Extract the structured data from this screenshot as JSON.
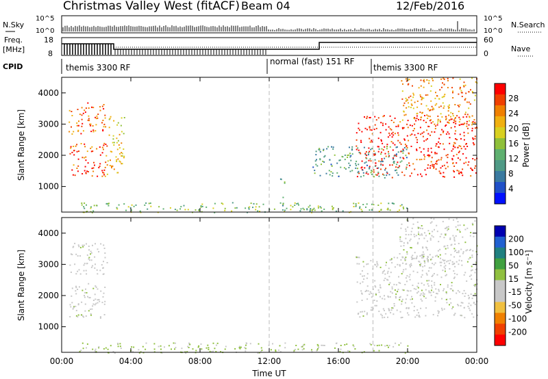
{
  "header": {
    "title": "Christmas Valley West (fitACF)",
    "beam": "Beam 04",
    "date": "12/Feb/2016"
  },
  "params": {
    "nsky_label": "N.Sky",
    "nsky_ticks": [
      "10^5",
      "10^0"
    ],
    "nsearch_label": "N.Search",
    "nsearch_ticks": [
      "10^5",
      "10^0"
    ],
    "freq_label": "Freq.",
    "freq_unit": "[MHz]",
    "freq_ticks": [
      "18",
      "8"
    ],
    "nave_label": "Nave",
    "nave_ticks": [
      "60",
      "0"
    ],
    "cpid_label": "CPID",
    "cpid_segments": [
      {
        "label": "themis 3300 RF",
        "start_hour": 0
      },
      {
        "label": "normal (fast) 151 RF",
        "start_hour": 12
      },
      {
        "label": "themis 3300 RF",
        "start_hour": 18
      }
    ]
  },
  "chart_data": [
    {
      "type": "heatmap",
      "title": "",
      "xlabel": "Time UT",
      "ylabel": "Slant Range [km]",
      "xlim_hours": [
        0,
        24
      ],
      "x_ticks": [
        "00:00",
        "04:00",
        "08:00",
        "12:00",
        "16:00",
        "20:00",
        "00:00"
      ],
      "ylim": [
        180,
        4500
      ],
      "y_ticks": [
        1000,
        2000,
        3000,
        4000
      ],
      "colorbar": {
        "label": "Power [dB]",
        "ticks": [
          4,
          8,
          12,
          16,
          20,
          24,
          28
        ],
        "range": [
          0,
          30
        ],
        "colors": [
          "#0010ff",
          "#2050c8",
          "#3a7aa0",
          "#4f9a86",
          "#5fb070",
          "#8fc03a",
          "#d8d020",
          "#f0b010",
          "#f08000",
          "#f04000",
          "#ff0000"
        ]
      },
      "segment_markers_hours": [
        12,
        18
      ],
      "regions": [
        {
          "name": "early-upper-arc",
          "t": [
            0.4,
            2.6
          ],
          "range": [
            2700,
            3700
          ],
          "value": 24
        },
        {
          "name": "early-lower-arc",
          "t": [
            0.4,
            2.6
          ],
          "range": [
            1300,
            2400
          ],
          "value": 26
        },
        {
          "name": "early-patch",
          "t": [
            2.6,
            3.6
          ],
          "range": [
            1400,
            3300
          ],
          "value": 20
        },
        {
          "name": "near-range-band",
          "t": [
            1,
            20
          ],
          "range": [
            180,
            500
          ],
          "value": 14
        },
        {
          "name": "midday-spike",
          "t": [
            12.6,
            12.9
          ],
          "range": [
            400,
            1300
          ],
          "value": 10
        },
        {
          "name": "evening-main-band",
          "t": [
            17,
            24
          ],
          "range": [
            1300,
            3300
          ],
          "value": 28
        },
        {
          "name": "evening-upper-band",
          "t": [
            19.5,
            24
          ],
          "range": [
            3000,
            4500
          ],
          "value": 22
        },
        {
          "name": "evening-lower-trail",
          "t": [
            14.5,
            20
          ],
          "range": [
            1300,
            2300
          ],
          "value": 10
        }
      ]
    },
    {
      "type": "heatmap",
      "title": "",
      "xlabel": "Time UT",
      "ylabel": "Slant Range [km]",
      "xlim_hours": [
        0,
        24
      ],
      "x_ticks": [
        "00:00",
        "04:00",
        "08:00",
        "12:00",
        "16:00",
        "20:00",
        "00:00"
      ],
      "ylim": [
        180,
        4500
      ],
      "y_ticks": [
        1000,
        2000,
        3000,
        4000
      ],
      "colorbar": {
        "label": "Velocity [m s⁻¹]",
        "ticks": [
          200,
          100,
          50,
          15,
          -15,
          -50,
          -100,
          -200
        ],
        "range": [
          -250,
          250
        ],
        "colors": [
          "#0000b0",
          "#2060d0",
          "#208080",
          "#40a040",
          "#90c040",
          "#c8c8c8",
          "#c8c8c8",
          "#f0c040",
          "#f08000",
          "#f04000",
          "#ff0000"
        ]
      },
      "segment_markers_hours": [
        12,
        18
      ],
      "regions": [
        {
          "name": "early-upper-arc",
          "t": [
            0.4,
            2.6
          ],
          "range": [
            2700,
            3700
          ],
          "value": 0
        },
        {
          "name": "early-lower-arc",
          "t": [
            0.4,
            2.6
          ],
          "range": [
            1300,
            2400
          ],
          "value": 0
        },
        {
          "name": "near-range-band",
          "t": [
            1,
            20
          ],
          "range": [
            180,
            500
          ],
          "value": -30
        },
        {
          "name": "evening-main-band",
          "t": [
            17,
            24
          ],
          "range": [
            1300,
            3300
          ],
          "value": 0
        },
        {
          "name": "evening-upper-band",
          "t": [
            19.5,
            24
          ],
          "range": [
            3000,
            4500
          ],
          "value": 0
        }
      ]
    }
  ]
}
